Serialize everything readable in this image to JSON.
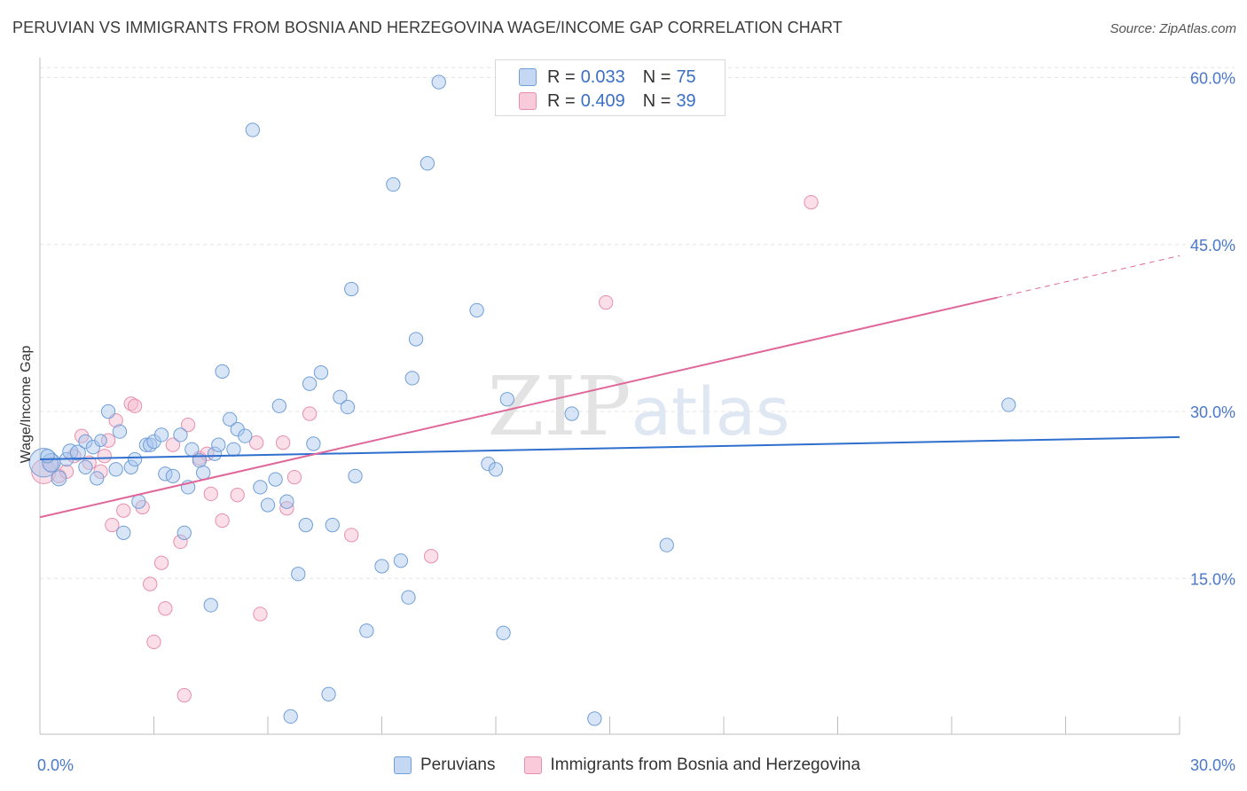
{
  "title": "PERUVIAN VS IMMIGRANTS FROM BOSNIA AND HERZEGOVINA WAGE/INCOME GAP CORRELATION CHART",
  "source": "Source: ZipAtlas.com",
  "watermark": "ZIPatlas",
  "colors": {
    "blue_fill": "#a9c6ee",
    "blue_stroke": "#6f9ed8",
    "blue_line": "#2f6fce",
    "pink_fill": "#f5b8cb",
    "pink_stroke": "#e88fab",
    "pink_line": "#e0679a",
    "tick_text": "#4a78c8",
    "grid": "#e4e4e4"
  },
  "legend": {
    "rows": [
      {
        "r_label": "R =",
        "r_value": "0.033",
        "n_label": "N =",
        "n_value": "75"
      },
      {
        "r_label": "R =",
        "r_value": "0.409",
        "n_label": "N =",
        "n_value": "39"
      }
    ]
  },
  "chart_data": {
    "type": "scatter",
    "title": "PERUVIAN VS IMMIGRANTS FROM BOSNIA AND HERZEGOVINA WAGE/INCOME GAP CORRELATION CHART",
    "xlabel": "",
    "ylabel": "Wage/Income Gap",
    "xlim": [
      0,
      30
    ],
    "ylim": [
      1,
      61
    ],
    "x_tick_labels": [
      "0.0%",
      "30.0%"
    ],
    "y_ticks": [
      15,
      30,
      45,
      60
    ],
    "y_tick_labels": [
      "15.0%",
      "30.0%",
      "45.0%",
      "60.0%"
    ],
    "grid": true,
    "legend_position": "top-center",
    "series": [
      {
        "name": "Peruvians",
        "color": "#a9c6ee",
        "trend": {
          "x": [
            0,
            30
          ],
          "y": [
            25.7,
            27.7
          ],
          "dashed_from": null
        },
        "points": [
          [
            0.1,
            25.4,
            1.9
          ],
          [
            0.3,
            25.4,
            1.2
          ],
          [
            0.5,
            24.0,
            1.0
          ],
          [
            0.7,
            25.7,
            0.9
          ],
          [
            0.8,
            26.4,
            1.0
          ],
          [
            1.0,
            26.3,
            1.0
          ],
          [
            1.2,
            25.0,
            0.9
          ],
          [
            1.2,
            27.3,
            0.9
          ],
          [
            1.4,
            26.8,
            0.9
          ],
          [
            1.5,
            24.0,
            0.9
          ],
          [
            1.6,
            27.4,
            0.8
          ],
          [
            1.8,
            30.0,
            0.9
          ],
          [
            2.0,
            24.8,
            0.9
          ],
          [
            2.1,
            28.2,
            0.9
          ],
          [
            2.2,
            19.1,
            0.9
          ],
          [
            2.4,
            25.0,
            0.9
          ],
          [
            2.5,
            25.7,
            0.9
          ],
          [
            2.6,
            21.9,
            0.9
          ],
          [
            2.8,
            27.0,
            0.9
          ],
          [
            2.9,
            27.0,
            0.9
          ],
          [
            3.0,
            27.3,
            0.9
          ],
          [
            3.2,
            27.9,
            0.9
          ],
          [
            3.3,
            24.4,
            0.9
          ],
          [
            3.5,
            24.2,
            0.9
          ],
          [
            3.7,
            27.9,
            0.9
          ],
          [
            3.8,
            19.1,
            0.9
          ],
          [
            3.9,
            23.2,
            0.9
          ],
          [
            4.0,
            26.6,
            0.9
          ],
          [
            4.2,
            25.6,
            0.9
          ],
          [
            4.3,
            24.5,
            0.9
          ],
          [
            4.5,
            12.6,
            0.9
          ],
          [
            4.6,
            26.2,
            0.9
          ],
          [
            4.7,
            27.0,
            0.9
          ],
          [
            4.8,
            33.6,
            0.9
          ],
          [
            5.0,
            29.3,
            0.9
          ],
          [
            5.1,
            26.6,
            0.9
          ],
          [
            5.2,
            28.4,
            0.9
          ],
          [
            5.4,
            27.8,
            0.9
          ],
          [
            5.6,
            55.3,
            0.9
          ],
          [
            5.8,
            23.2,
            0.9
          ],
          [
            6.0,
            21.6,
            0.9
          ],
          [
            6.2,
            23.9,
            0.9
          ],
          [
            6.3,
            30.5,
            0.9
          ],
          [
            6.5,
            21.9,
            0.9
          ],
          [
            6.6,
            2.6,
            0.9
          ],
          [
            6.8,
            15.4,
            0.9
          ],
          [
            7.0,
            19.8,
            0.9
          ],
          [
            7.1,
            32.5,
            0.9
          ],
          [
            7.2,
            27.1,
            0.9
          ],
          [
            7.4,
            33.5,
            0.9
          ],
          [
            7.6,
            4.6,
            0.9
          ],
          [
            7.7,
            19.8,
            0.9
          ],
          [
            7.9,
            31.3,
            0.9
          ],
          [
            8.1,
            30.4,
            0.9
          ],
          [
            8.2,
            41.0,
            0.9
          ],
          [
            8.3,
            24.2,
            0.9
          ],
          [
            8.6,
            10.3,
            0.9
          ],
          [
            9.0,
            16.1,
            0.9
          ],
          [
            9.3,
            50.4,
            0.9
          ],
          [
            9.5,
            16.6,
            0.9
          ],
          [
            9.7,
            13.3,
            0.9
          ],
          [
            9.8,
            33.0,
            0.9
          ],
          [
            9.9,
            36.5,
            0.9
          ],
          [
            10.2,
            52.3,
            0.9
          ],
          [
            10.5,
            59.6,
            0.9
          ],
          [
            11.5,
            39.1,
            0.9
          ],
          [
            11.8,
            25.3,
            0.9
          ],
          [
            12.0,
            24.8,
            0.9
          ],
          [
            12.2,
            10.1,
            0.9
          ],
          [
            12.3,
            31.1,
            0.9
          ],
          [
            14.0,
            29.8,
            0.9
          ],
          [
            14.6,
            2.4,
            0.9
          ],
          [
            16.5,
            18.0,
            0.9
          ],
          [
            25.5,
            30.6,
            0.9
          ],
          [
            0.2,
            26.0,
            0.9
          ]
        ]
      },
      {
        "name": "Immigrants from Bosnia and Herzegovina",
        "color": "#f5b8cb",
        "trend": {
          "x": [
            0,
            30
          ],
          "y": [
            20.5,
            44.0
          ],
          "dashed_from": 25.2
        },
        "points": [
          [
            0.1,
            24.6,
            1.6
          ],
          [
            0.3,
            25.2,
            1.0
          ],
          [
            0.5,
            24.2,
            0.9
          ],
          [
            0.7,
            24.6,
            0.9
          ],
          [
            0.9,
            26.0,
            0.9
          ],
          [
            1.1,
            27.8,
            0.9
          ],
          [
            1.3,
            25.4,
            0.9
          ],
          [
            1.6,
            24.6,
            0.9
          ],
          [
            1.7,
            26.0,
            0.9
          ],
          [
            1.8,
            27.4,
            0.9
          ],
          [
            1.9,
            19.8,
            0.9
          ],
          [
            2.0,
            29.2,
            0.9
          ],
          [
            2.2,
            21.1,
            0.9
          ],
          [
            2.4,
            30.7,
            0.9
          ],
          [
            2.5,
            30.5,
            0.9
          ],
          [
            2.7,
            21.4,
            0.9
          ],
          [
            2.9,
            14.5,
            0.9
          ],
          [
            3.0,
            9.3,
            0.9
          ],
          [
            3.2,
            16.4,
            0.9
          ],
          [
            3.3,
            12.3,
            0.9
          ],
          [
            3.5,
            27.0,
            0.9
          ],
          [
            3.7,
            18.3,
            0.9
          ],
          [
            3.8,
            4.5,
            0.9
          ],
          [
            3.9,
            28.8,
            0.9
          ],
          [
            4.2,
            25.8,
            0.9
          ],
          [
            4.4,
            26.2,
            0.9
          ],
          [
            4.5,
            22.6,
            0.9
          ],
          [
            4.8,
            20.2,
            0.9
          ],
          [
            5.2,
            22.5,
            0.9
          ],
          [
            5.7,
            27.2,
            0.9
          ],
          [
            5.8,
            11.8,
            0.9
          ],
          [
            6.4,
            27.2,
            0.9
          ],
          [
            6.5,
            21.3,
            0.9
          ],
          [
            6.7,
            24.1,
            0.9
          ],
          [
            7.1,
            29.8,
            0.9
          ],
          [
            8.2,
            18.9,
            0.9
          ],
          [
            10.3,
            17.0,
            0.9
          ],
          [
            14.9,
            39.8,
            0.9
          ],
          [
            20.3,
            48.8,
            0.9
          ]
        ]
      }
    ]
  },
  "bottom_legend": [
    {
      "label": "Peruvians"
    },
    {
      "label": "Immigrants from Bosnia and Herzegovina"
    }
  ]
}
